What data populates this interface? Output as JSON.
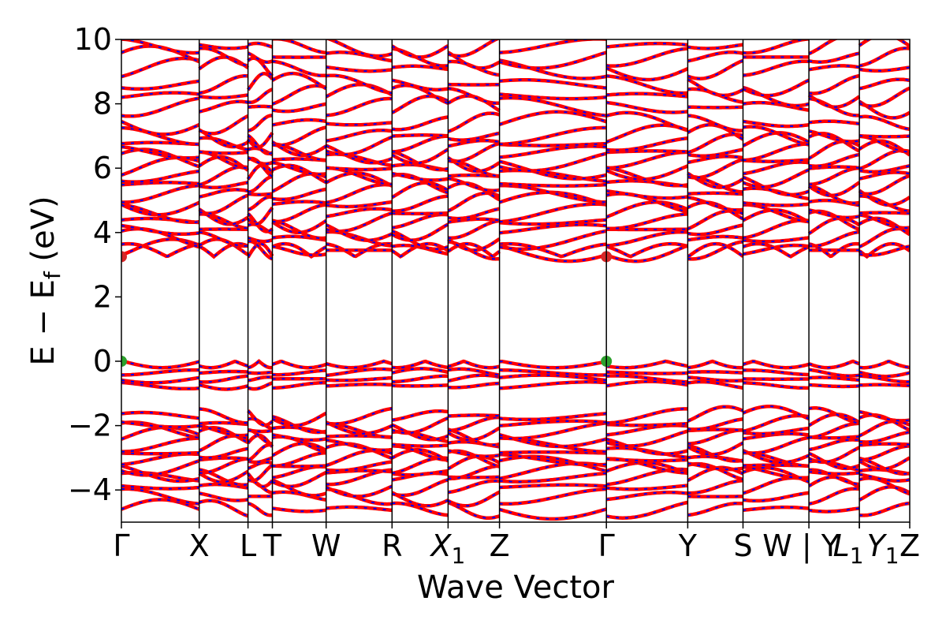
{
  "chart_data": {
    "type": "line",
    "title": "",
    "xlabel": "Wave Vector",
    "ylabel": "E − E_f (eV)",
    "ylabel_parts": {
      "main": "E − E",
      "sub": "f",
      "unit": " (eV)"
    },
    "ylim": [
      -5,
      10
    ],
    "yticks": [
      -4,
      -2,
      0,
      2,
      4,
      6,
      8,
      10
    ],
    "ytick_labels": [
      "−4",
      "−2",
      "0",
      "2",
      "4",
      "6",
      "8",
      "10"
    ],
    "kpath": [
      {
        "label": "Γ",
        "sub": "",
        "x": 0.0
      },
      {
        "label": "X",
        "sub": "",
        "x": 0.0987
      },
      {
        "label": "L",
        "sub": "",
        "x": 0.1606
      },
      {
        "label": "T",
        "sub": "",
        "x": 0.1915
      },
      {
        "label": "W",
        "sub": "",
        "x": 0.2597
      },
      {
        "label": "R",
        "sub": "",
        "x": 0.3433
      },
      {
        "label": "X",
        "sub": "1",
        "x": 0.4144
      },
      {
        "label": "Z",
        "sub": "",
        "x": 0.4796
      },
      {
        "label": "Γ",
        "sub": "",
        "x": 0.6152
      },
      {
        "label": "Y",
        "sub": "",
        "x": 0.7184
      },
      {
        "label": "S",
        "sub": "",
        "x": 0.7885
      },
      {
        "label": "W|Y",
        "sub": "",
        "x": 0.8721
      },
      {
        "label": "L",
        "sub": "1",
        "x": 0.9361
      },
      {
        "label": "Y",
        "sub": "1",
        "x": 0.9361
      },
      {
        "label": "Z",
        "sub": "",
        "x": 1.0
      }
    ],
    "band_gap_markers": [
      {
        "name": "CBM",
        "color": "#d62728",
        "points": [
          [
            0.0,
            3.25
          ],
          [
            0.6152,
            3.25
          ]
        ]
      },
      {
        "name": "VBM",
        "color": "#2ca02c",
        "points": [
          [
            0.0,
            0.0
          ],
          [
            0.6152,
            0.0
          ]
        ]
      }
    ],
    "series": [
      {
        "color": "#ff0000",
        "dash_color": "#0000ff",
        "values": []
      }
    ],
    "band_anchor_energies": [
      -4.6,
      -4.2,
      -3.9,
      -3.6,
      -3.45,
      -3.25,
      -3.05,
      -2.85,
      -2.6,
      -2.35,
      -2.15,
      -1.95,
      -1.7,
      -0.75,
      -0.55,
      -0.35,
      0.0,
      3.25,
      3.45,
      3.8,
      4.1,
      4.35,
      4.6,
      4.9,
      5.2,
      5.5,
      5.75,
      6.0,
      6.25,
      6.5,
      6.75,
      7.0,
      7.4,
      7.9,
      8.25,
      8.6,
      9.1,
      9.45,
      9.8
    ]
  }
}
